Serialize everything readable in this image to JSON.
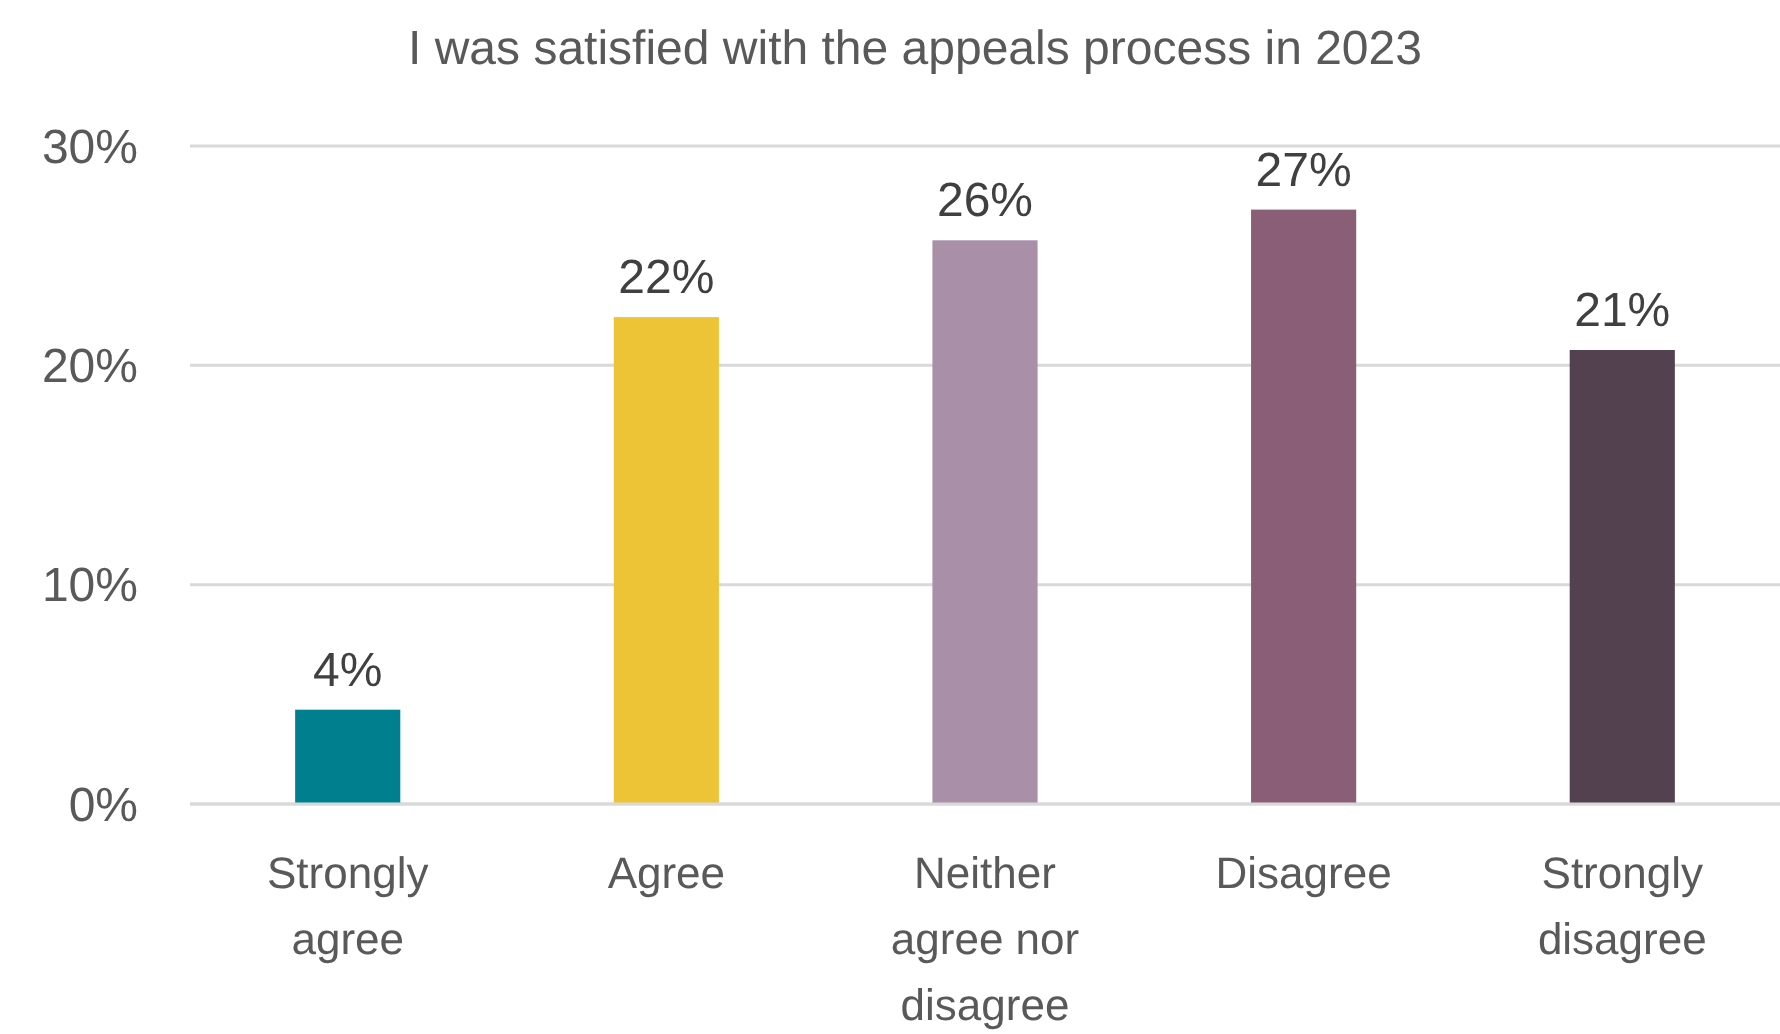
{
  "chart_data": {
    "type": "bar",
    "title": "I was satisfied with the appeals process in 2023",
    "categories": [
      "Strongly agree",
      "Agree",
      "Neither agree nor disagree",
      "Disagree",
      "Strongly disagree"
    ],
    "values": [
      4.3,
      22.2,
      25.7,
      27.1,
      20.7
    ],
    "value_labels": [
      "4%",
      "22%",
      "26%",
      "27%",
      "21%"
    ],
    "colors": [
      "#00808f",
      "#ecc435",
      "#a98fa8",
      "#8a5e77",
      "#544150"
    ],
    "ylim": [
      0,
      30
    ],
    "yticks": [
      {
        "value": 0,
        "label": "0%"
      },
      {
        "value": 10,
        "label": "10%"
      },
      {
        "value": 20,
        "label": "20%"
      },
      {
        "value": 30,
        "label": "30%"
      }
    ],
    "grid": "y"
  }
}
